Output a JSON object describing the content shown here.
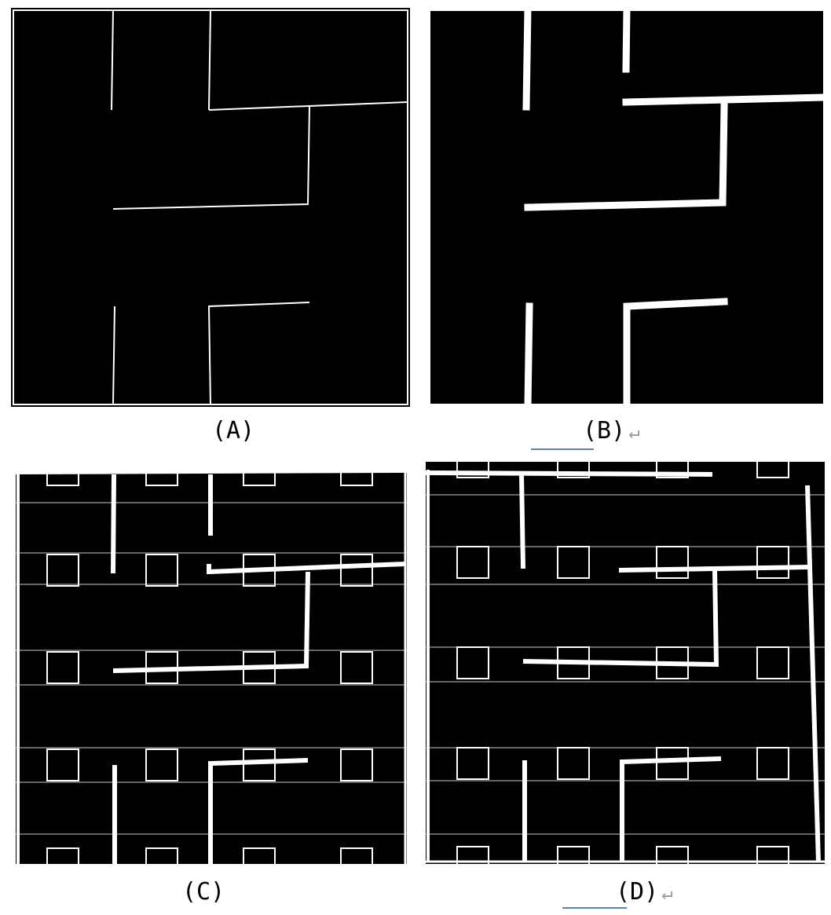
{
  "panels": [
    {
      "id": "A",
      "label": "(A)"
    },
    {
      "id": "B",
      "label": "(B)",
      "return_mark": "↵"
    },
    {
      "id": "C",
      "label": "(C)"
    },
    {
      "id": "D",
      "label": "(D)",
      "return_mark": "↵"
    }
  ],
  "colors": {
    "background": "#000000",
    "lines": "#ffffff",
    "underline": "#5b84b1",
    "return_mark": "#9a9a9a"
  }
}
